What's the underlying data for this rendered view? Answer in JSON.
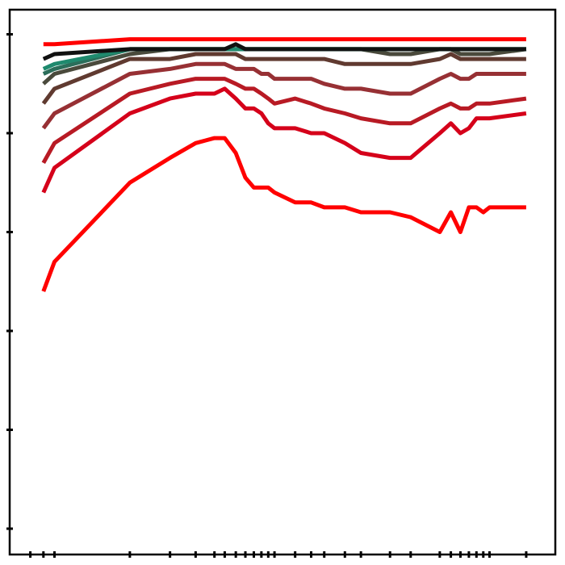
{
  "chart_data": {
    "type": "line",
    "title": "",
    "xlabel": "",
    "ylabel": "",
    "x_scale": "log",
    "x_tick_labels_shown": false,
    "y_tick_labels_shown": false,
    "grid": false,
    "legend": "none",
    "xlim": [
      1,
      1000
    ],
    "ylim": [
      0,
      1
    ],
    "x": [
      1.2,
      1.4,
      4,
      7,
      10,
      13,
      15,
      17.5,
      20,
      22.5,
      25,
      27.5,
      30,
      40,
      50,
      60,
      80,
      100,
      150,
      200,
      300,
      350,
      400,
      450,
      500,
      550,
      600,
      1000
    ],
    "series": [
      {
        "color": "#ff0000",
        "values": [
          0.48,
          0.54,
          0.7,
          0.75,
          0.78,
          0.79,
          0.79,
          0.76,
          0.71,
          0.69,
          0.69,
          0.69,
          0.68,
          0.66,
          0.66,
          0.65,
          0.65,
          0.64,
          0.64,
          0.63,
          0.6,
          0.64,
          0.6,
          0.65,
          0.65,
          0.64,
          0.65,
          0.65
        ]
      },
      {
        "color": "#d5001a",
        "values": [
          0.68,
          0.73,
          0.84,
          0.87,
          0.88,
          0.88,
          0.89,
          0.87,
          0.85,
          0.85,
          0.84,
          0.82,
          0.81,
          0.81,
          0.8,
          0.8,
          0.78,
          0.76,
          0.75,
          0.75,
          0.8,
          0.82,
          0.8,
          0.81,
          0.83,
          0.83,
          0.83,
          0.84
        ]
      },
      {
        "color": "#b81a24",
        "values": [
          0.74,
          0.78,
          0.88,
          0.9,
          0.91,
          0.91,
          0.91,
          0.9,
          0.89,
          0.89,
          0.88,
          0.87,
          0.86,
          0.87,
          0.86,
          0.85,
          0.84,
          0.83,
          0.82,
          0.82,
          0.85,
          0.86,
          0.85,
          0.85,
          0.86,
          0.86,
          0.86,
          0.87
        ]
      },
      {
        "color": "#973034",
        "values": [
          0.81,
          0.84,
          0.92,
          0.93,
          0.94,
          0.94,
          0.94,
          0.93,
          0.93,
          0.93,
          0.92,
          0.92,
          0.91,
          0.91,
          0.91,
          0.9,
          0.89,
          0.89,
          0.88,
          0.88,
          0.91,
          0.92,
          0.91,
          0.91,
          0.92,
          0.92,
          0.92,
          0.92
        ]
      },
      {
        "color": "#603a30",
        "values": [
          0.86,
          0.89,
          0.95,
          0.95,
          0.96,
          0.96,
          0.96,
          0.96,
          0.95,
          0.95,
          0.95,
          0.95,
          0.95,
          0.95,
          0.95,
          0.95,
          0.94,
          0.94,
          0.94,
          0.94,
          0.95,
          0.96,
          0.95,
          0.95,
          0.95,
          0.95,
          0.95,
          0.95
        ]
      },
      {
        "color": "#4a4a3c",
        "values": [
          0.9,
          0.92,
          0.96,
          0.97,
          0.97,
          0.97,
          0.97,
          0.97,
          0.97,
          0.97,
          0.97,
          0.97,
          0.97,
          0.97,
          0.97,
          0.97,
          0.97,
          0.97,
          0.96,
          0.96,
          0.97,
          0.97,
          0.96,
          0.96,
          0.96,
          0.96,
          0.96,
          0.97
        ]
      },
      {
        "color": "#2b6e5a",
        "values": [
          0.92,
          0.93,
          0.97,
          0.97,
          0.97,
          0.97,
          0.97,
          0.97,
          0.97,
          0.97,
          0.97,
          0.97,
          0.97,
          0.97,
          0.97,
          0.97,
          0.97,
          0.97,
          0.97,
          0.97,
          0.97,
          0.97,
          0.97,
          0.97,
          0.97,
          0.97,
          0.97,
          0.97
        ]
      },
      {
        "color": "#1f8a6e",
        "values": [
          0.93,
          0.94,
          0.97,
          0.97,
          0.97,
          0.97,
          0.97,
          0.97,
          0.97,
          0.97,
          0.97,
          0.97,
          0.97,
          0.97,
          0.97,
          0.97,
          0.97,
          0.97,
          0.97,
          0.97,
          0.97,
          0.97,
          0.97,
          0.97,
          0.97,
          0.97,
          0.97,
          0.97
        ]
      },
      {
        "color": "#111111",
        "values": [
          0.95,
          0.96,
          0.97,
          0.97,
          0.97,
          0.97,
          0.97,
          0.98,
          0.97,
          0.97,
          0.97,
          0.97,
          0.97,
          0.97,
          0.97,
          0.97,
          0.97,
          0.97,
          0.97,
          0.97,
          0.97,
          0.97,
          0.97,
          0.97,
          0.97,
          0.97,
          0.97,
          0.97
        ]
      },
      {
        "color": "#ff0000",
        "values": [
          0.98,
          0.98,
          0.99,
          0.99,
          0.99,
          0.99,
          0.99,
          0.99,
          0.99,
          0.99,
          0.99,
          0.99,
          0.99,
          0.99,
          0.99,
          0.99,
          0.99,
          0.99,
          0.99,
          0.99,
          0.99,
          0.99,
          0.99,
          0.99,
          0.99,
          0.99,
          0.99,
          0.99
        ]
      }
    ],
    "y_ticks": [
      0,
      0.2,
      0.4,
      0.6,
      0.8,
      1.0
    ],
    "x_ticks": [
      1.0,
      1.2,
      1.4,
      4,
      7,
      10,
      13,
      15,
      17.5,
      20,
      22.5,
      25,
      27.5,
      30,
      40,
      50,
      60,
      80,
      100,
      150,
      200,
      300,
      350,
      400,
      450,
      500,
      550,
      600,
      1000
    ]
  }
}
